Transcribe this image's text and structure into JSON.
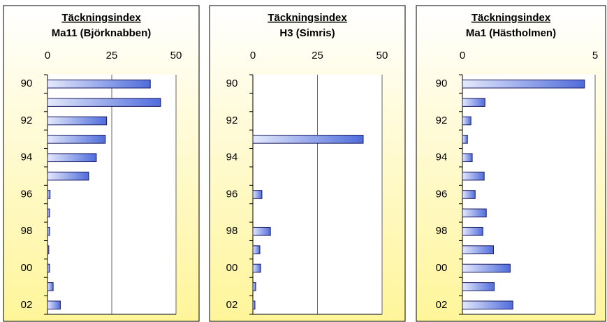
{
  "chart_data": [
    {
      "type": "bar",
      "title": "Täckningsindex",
      "subtitle": "Ma11 (Björknabben)",
      "categories": [
        "90",
        null,
        "92",
        null,
        "94",
        null,
        "96",
        null,
        "98",
        null,
        "00",
        null,
        "02"
      ],
      "values": [
        40,
        44,
        23,
        22.5,
        19,
        16,
        1,
        0.8,
        0.8,
        0.5,
        0.8,
        2.2,
        5
      ],
      "xlim": [
        0,
        50
      ],
      "xticks": [
        0,
        25,
        50
      ],
      "grid": true,
      "color": "#5a78e0"
    },
    {
      "type": "bar",
      "title": "Täckningsindex",
      "subtitle": "H3 (Simris)",
      "categories": [
        "90",
        null,
        "92",
        null,
        "94",
        null,
        "96",
        null,
        "98",
        null,
        "00",
        null,
        "02"
      ],
      "values": [
        null,
        null,
        null,
        42.7,
        null,
        null,
        3.5,
        null,
        6.8,
        2.7,
        3,
        1.1,
        0.8
      ],
      "xlim": [
        0,
        50
      ],
      "xticks": [
        0,
        25,
        50
      ],
      "grid": true,
      "color": "#5a78e0"
    },
    {
      "type": "bar",
      "title": "Täckningsindex",
      "subtitle": "Ma1 (Hästholmen)",
      "categories": [
        "90",
        null,
        "92",
        null,
        "94",
        null,
        "96",
        null,
        "98",
        null,
        "00",
        null,
        "02"
      ],
      "values": [
        4.6,
        0.85,
        0.32,
        0.19,
        0.37,
        0.82,
        0.48,
        0.9,
        0.77,
        1.17,
        1.8,
        1.2,
        1.9
      ],
      "xlim": [
        0,
        5
      ],
      "xticks": [
        0,
        5
      ],
      "grid": true,
      "color": "#5a78e0"
    }
  ]
}
